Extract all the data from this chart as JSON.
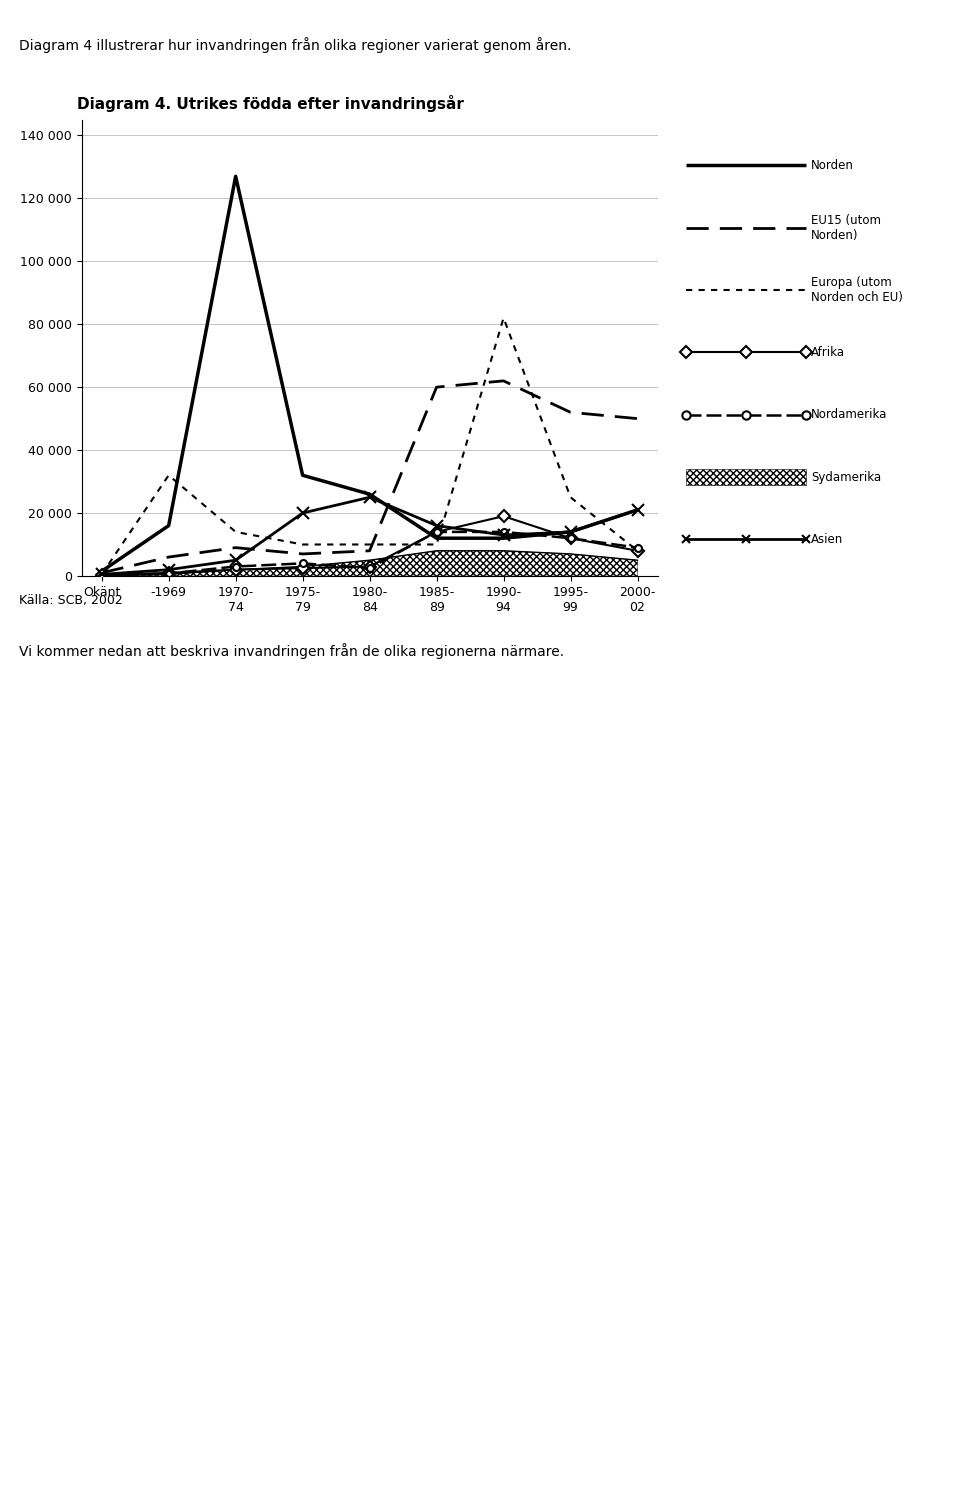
{
  "title": "Diagram 4. Utrikes födda efter invandringsår",
  "above_text": "Diagram 4 illustrerar hur invandringen från olika regioner varierat genom åren.",
  "below_text": "Källa: SCB, 2002",
  "below_text2": "Vi kommer nedan att beskriva invandringen från de olika regionerna närmare.",
  "xlabel_categories": [
    "Okänt",
    "-1969",
    "1970-\n74",
    "1975-\n79",
    "1980-\n84",
    "1985-\n89",
    "1990-\n94",
    "1995-\n99",
    "2000-\n02"
  ],
  "ylim": [
    0,
    145000
  ],
  "yticks": [
    0,
    20000,
    40000,
    60000,
    80000,
    100000,
    120000,
    140000
  ],
  "ytick_labels": [
    "0",
    "20 000",
    "40 000",
    "60 000",
    "80 000",
    "100 000",
    "120 000",
    "140 000"
  ],
  "series": {
    "Norden": {
      "values": [
        1500,
        16000,
        127000,
        32000,
        26000,
        12000,
        12000,
        14000,
        21000
      ],
      "linestyle": "solid",
      "linewidth": 2.5,
      "marker": null,
      "markersize": 0
    },
    "EU15 (utom\nNorden)": {
      "values": [
        1000,
        6000,
        9000,
        7000,
        8000,
        60000,
        62000,
        52000,
        50000
      ],
      "linestyle": "dashed",
      "linewidth": 2.0,
      "dashes": [
        8,
        4,
        8,
        4
      ],
      "marker": null,
      "markersize": 0
    },
    "Europa (utom\nNorden och EU)": {
      "values": [
        500,
        32000,
        14000,
        10000,
        10000,
        10000,
        82000,
        25000,
        8000
      ],
      "linestyle": "dashed",
      "linewidth": 1.5,
      "dashes": [
        3,
        3,
        3,
        3
      ],
      "marker": null,
      "markersize": 0
    },
    "Afrika": {
      "values": [
        200,
        1000,
        2000,
        2500,
        3000,
        14000,
        19000,
        12000,
        8000
      ],
      "linestyle": "solid",
      "linewidth": 1.5,
      "marker": "D",
      "markersize": 6,
      "markerfacecolor": "white"
    },
    "Nordamerika": {
      "values": [
        100,
        800,
        3000,
        4000,
        2500,
        14000,
        14000,
        12000,
        9000
      ],
      "linestyle": "dashed",
      "linewidth": 1.8,
      "dashes": [
        6,
        2,
        6,
        2
      ],
      "marker": "o",
      "markersize": 5,
      "markerfacecolor": "white"
    },
    "Sydamerika": {
      "values": [
        100,
        500,
        2000,
        3000,
        5000,
        8000,
        8000,
        7000,
        5000
      ],
      "linestyle": "solid",
      "linewidth": 1.0,
      "marker": null,
      "markersize": 0,
      "is_hatch": true
    },
    "Asien": {
      "values": [
        500,
        2000,
        5000,
        20000,
        25000,
        16000,
        13000,
        14000,
        21000
      ],
      "linestyle": "solid",
      "linewidth": 2.0,
      "marker": "x",
      "markersize": 8,
      "markerfacecolor": "black"
    }
  },
  "background_color": "#ffffff",
  "figure_background": "#ffffff"
}
